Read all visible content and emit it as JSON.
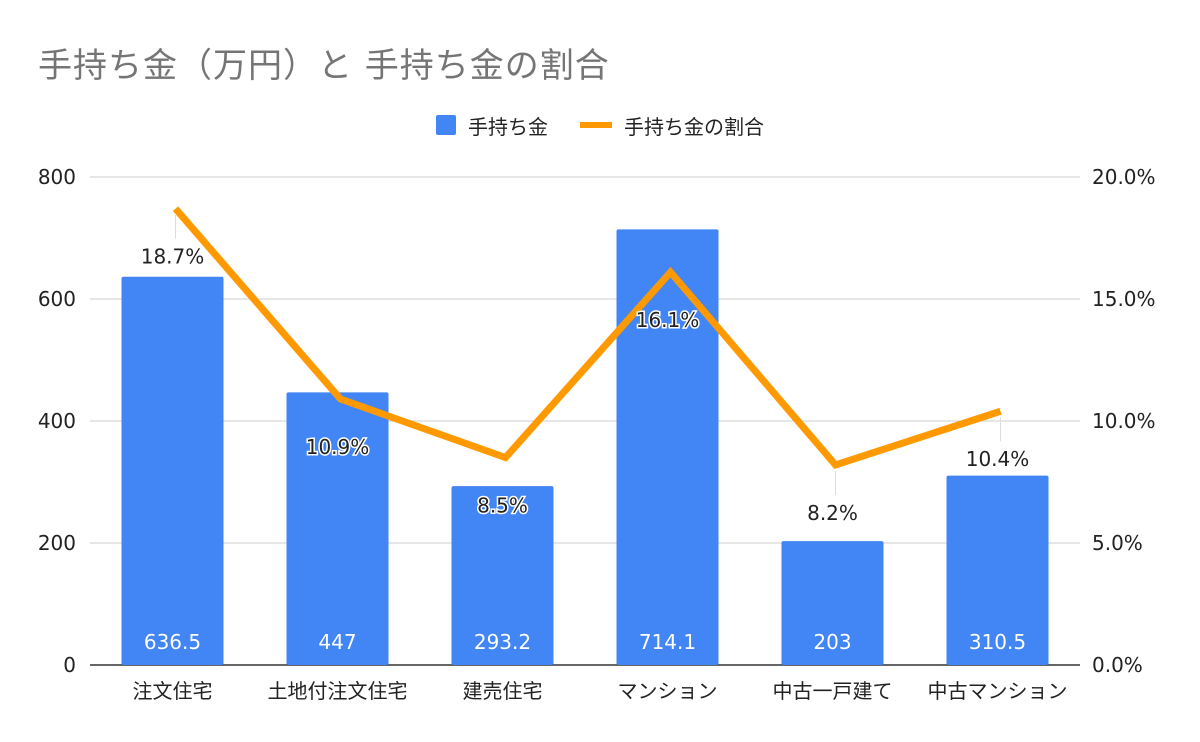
{
  "chart_data": {
    "type": "bar",
    "title": "手持ち金（万円）と 手持ち金の割合",
    "categories": [
      "注文住宅",
      "土地付注文住宅",
      "建売住宅",
      "マンション",
      "中古一戸建て",
      "中古マンション"
    ],
    "series": [
      {
        "name": "手持ち金",
        "type": "bar",
        "axis": "left",
        "color": "#4285f4",
        "values": [
          636.5,
          447,
          293.2,
          714.1,
          203,
          310.5
        ],
        "labels": [
          "636.5",
          "447",
          "293.2",
          "714.1",
          "203",
          "310.5"
        ]
      },
      {
        "name": "手持ち金の割合",
        "type": "line",
        "axis": "right",
        "color": "#ff9900",
        "values": [
          18.7,
          10.9,
          8.5,
          16.1,
          8.2,
          10.4
        ],
        "labels": [
          "18.7%",
          "10.9%",
          "8.5%",
          "16.1%",
          "8.2%",
          "10.4%"
        ]
      }
    ],
    "y_left": {
      "ylim": [
        0,
        800
      ],
      "ticks": [
        "0",
        "200",
        "400",
        "600",
        "800"
      ]
    },
    "y_right": {
      "ylim": [
        0,
        20
      ],
      "ticks": [
        "0.0%",
        "5.0%",
        "10.0%",
        "15.0%",
        "20.0%"
      ]
    },
    "grid": true,
    "legend_position": "top"
  }
}
